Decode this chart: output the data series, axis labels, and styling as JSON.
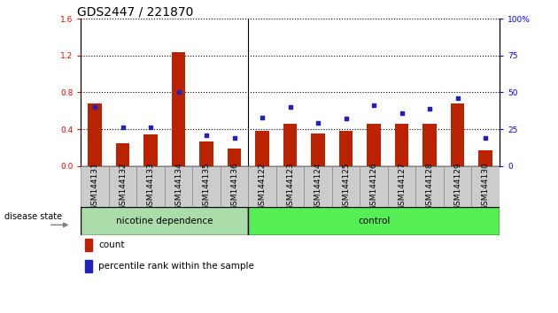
{
  "title": "GDS2447 / 221870",
  "categories": [
    "GSM144131",
    "GSM144132",
    "GSM144133",
    "GSM144134",
    "GSM144135",
    "GSM144136",
    "GSM144122",
    "GSM144123",
    "GSM144124",
    "GSM144125",
    "GSM144126",
    "GSM144127",
    "GSM144128",
    "GSM144129",
    "GSM144130"
  ],
  "count_values": [
    0.68,
    0.25,
    0.34,
    1.24,
    0.27,
    0.19,
    0.38,
    0.46,
    0.35,
    0.38,
    0.46,
    0.46,
    0.46,
    0.68,
    0.17
  ],
  "percentile_values": [
    40,
    26,
    26,
    50,
    21,
    19,
    33,
    40,
    29,
    32,
    41,
    36,
    39,
    46,
    19
  ],
  "ylim_left": [
    0,
    1.6
  ],
  "ylim_right": [
    0,
    100
  ],
  "yticks_left": [
    0,
    0.4,
    0.8,
    1.2,
    1.6
  ],
  "yticks_right": [
    0,
    25,
    50,
    75,
    100
  ],
  "group1_label": "nicotine dependence",
  "group2_label": "control",
  "group1_count": 6,
  "group2_count": 9,
  "legend_count_label": "count",
  "legend_percentile_label": "percentile rank within the sample",
  "disease_state_label": "disease state",
  "bar_color": "#bb2200",
  "dot_color": "#2222bb",
  "group1_color": "#aaddaa",
  "group2_color": "#55ee55",
  "tick_box_color": "#cccccc",
  "tick_box_edge_color": "#888888",
  "title_fontsize": 10,
  "tick_fontsize": 6.5,
  "label_fontsize": 7.5,
  "bar_width": 0.5
}
